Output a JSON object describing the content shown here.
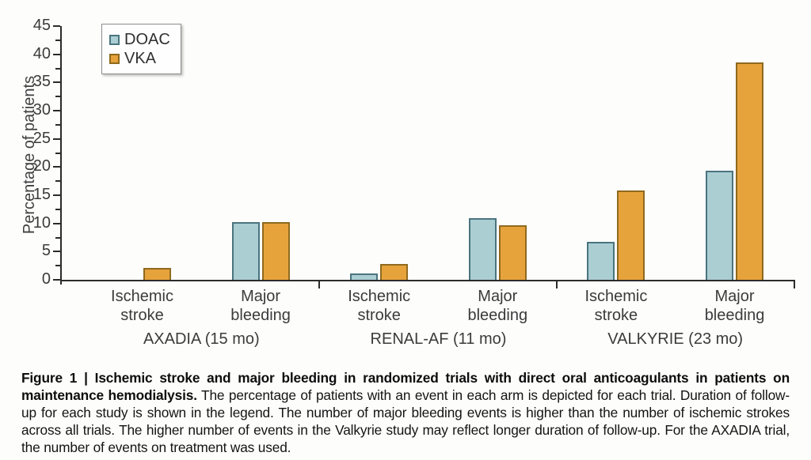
{
  "figure": {
    "caption_bold": "Figure 1 | Ischemic stroke and major bleeding in randomized trials with direct oral anticoagulants in patients on maintenance hemodialysis.",
    "caption_rest": " The percentage of patients with an event in each arm is depicted for each trial. Duration of follow-up for each study is shown in the legend. The number of major bleeding events is higher than the number of ischemic strokes across all trials. The higher number of events in the Valkyrie study may reflect longer duration of follow-up. For the AXADIA trial, the number of events on treatment was used."
  },
  "chart_data": {
    "type": "bar",
    "title": "",
    "ylabel": "Percentage of patients",
    "xlabel": "",
    "ylim": [
      0,
      45
    ],
    "ytick_step": 5,
    "minor_tick_step": 2.5,
    "grid": false,
    "legend_position": "upper-left-inside",
    "series": [
      {
        "name": "DOAC",
        "fill": "#abced3",
        "stroke": "#4a747e"
      },
      {
        "name": "VKA",
        "fill": "#e7a33b",
        "stroke": "#8f6a1e"
      }
    ],
    "axis_color": "#2b2b2b",
    "groups": [
      {
        "label": "AXADIA (15 mo)",
        "categories": [
          {
            "label": "Ischemic stroke",
            "values": {
              "DOAC": 0,
              "VKA": 2.1
            }
          },
          {
            "label": "Major bleeding",
            "values": {
              "DOAC": 10.3,
              "VKA": 10.2
            }
          }
        ]
      },
      {
        "label": "RENAL-AF (11 mo)",
        "categories": [
          {
            "label": "Ischemic stroke",
            "values": {
              "DOAC": 1.1,
              "VKA": 2.8
            }
          },
          {
            "label": "Major bleeding",
            "values": {
              "DOAC": 11.0,
              "VKA": 9.7
            }
          }
        ]
      },
      {
        "label": "VALKYRIE (23 mo)",
        "categories": [
          {
            "label": "Ischemic stroke",
            "values": {
              "DOAC": 6.8,
              "VKA": 15.9
            }
          },
          {
            "label": "Major bleeding",
            "values": {
              "DOAC": 19.3,
              "VKA": 38.6
            }
          }
        ]
      }
    ]
  }
}
